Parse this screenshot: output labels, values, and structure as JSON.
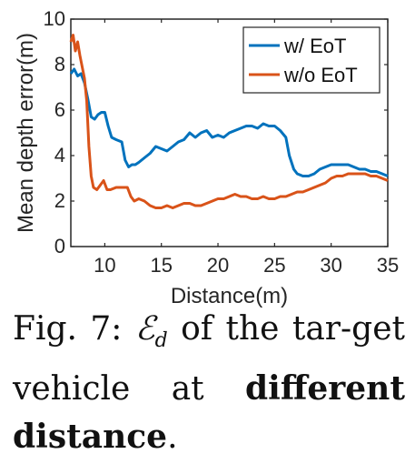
{
  "chart_data": {
    "type": "line",
    "xlabel": "Distance(m)",
    "ylabel": "Mean depth error(m)",
    "xlim": [
      7,
      35
    ],
    "ylim": [
      0,
      10
    ],
    "xticks": [
      10,
      15,
      20,
      25,
      30,
      35
    ],
    "yticks": [
      0,
      2,
      4,
      6,
      8,
      10
    ],
    "grid": false,
    "legend_position": "top-right",
    "series": [
      {
        "name": "w/ EoT",
        "color": "#0072BD",
        "points": [
          [
            7.0,
            7.6
          ],
          [
            7.3,
            7.8
          ],
          [
            7.6,
            7.5
          ],
          [
            7.9,
            7.6
          ],
          [
            8.2,
            7.2
          ],
          [
            8.5,
            6.5
          ],
          [
            8.8,
            5.7
          ],
          [
            9.1,
            5.6
          ],
          [
            9.4,
            5.8
          ],
          [
            9.7,
            5.9
          ],
          [
            10.0,
            5.9
          ],
          [
            10.3,
            5.3
          ],
          [
            10.6,
            4.8
          ],
          [
            11.0,
            4.7
          ],
          [
            11.5,
            4.6
          ],
          [
            11.8,
            3.8
          ],
          [
            12.1,
            3.5
          ],
          [
            12.4,
            3.6
          ],
          [
            12.7,
            3.6
          ],
          [
            13.0,
            3.7
          ],
          [
            13.5,
            3.9
          ],
          [
            14.0,
            4.1
          ],
          [
            14.5,
            4.4
          ],
          [
            15.0,
            4.3
          ],
          [
            15.5,
            4.2
          ],
          [
            16.0,
            4.4
          ],
          [
            16.5,
            4.6
          ],
          [
            17.0,
            4.7
          ],
          [
            17.5,
            5.0
          ],
          [
            18.0,
            4.8
          ],
          [
            18.5,
            5.0
          ],
          [
            19.0,
            5.1
          ],
          [
            19.5,
            4.8
          ],
          [
            20.0,
            4.9
          ],
          [
            20.5,
            4.8
          ],
          [
            21.0,
            5.0
          ],
          [
            21.5,
            5.1
          ],
          [
            22.0,
            5.2
          ],
          [
            22.5,
            5.3
          ],
          [
            23.0,
            5.3
          ],
          [
            23.5,
            5.2
          ],
          [
            24.0,
            5.4
          ],
          [
            24.5,
            5.3
          ],
          [
            25.0,
            5.3
          ],
          [
            25.5,
            5.1
          ],
          [
            26.0,
            4.8
          ],
          [
            26.3,
            4.0
          ],
          [
            26.7,
            3.4
          ],
          [
            27.0,
            3.2
          ],
          [
            27.5,
            3.1
          ],
          [
            28.0,
            3.1
          ],
          [
            28.5,
            3.2
          ],
          [
            29.0,
            3.4
          ],
          [
            29.5,
            3.5
          ],
          [
            30.0,
            3.6
          ],
          [
            30.5,
            3.6
          ],
          [
            31.0,
            3.6
          ],
          [
            31.5,
            3.6
          ],
          [
            32.0,
            3.5
          ],
          [
            32.5,
            3.4
          ],
          [
            33.0,
            3.4
          ],
          [
            33.5,
            3.3
          ],
          [
            34.0,
            3.3
          ],
          [
            34.5,
            3.2
          ],
          [
            35.0,
            3.1
          ]
        ]
      },
      {
        "name": "w/o EoT",
        "color": "#D95319",
        "points": [
          [
            7.0,
            9.0
          ],
          [
            7.2,
            9.3
          ],
          [
            7.4,
            8.6
          ],
          [
            7.6,
            9.0
          ],
          [
            7.8,
            8.4
          ],
          [
            8.0,
            7.9
          ],
          [
            8.2,
            7.4
          ],
          [
            8.4,
            6.4
          ],
          [
            8.6,
            4.4
          ],
          [
            8.8,
            3.1
          ],
          [
            9.0,
            2.6
          ],
          [
            9.3,
            2.5
          ],
          [
            9.6,
            2.7
          ],
          [
            9.9,
            2.9
          ],
          [
            10.2,
            2.5
          ],
          [
            10.5,
            2.5
          ],
          [
            11.0,
            2.6
          ],
          [
            11.5,
            2.6
          ],
          [
            12.0,
            2.6
          ],
          [
            12.3,
            2.2
          ],
          [
            12.6,
            2.0
          ],
          [
            13.0,
            2.1
          ],
          [
            13.5,
            2.0
          ],
          [
            14.0,
            1.8
          ],
          [
            14.5,
            1.7
          ],
          [
            15.0,
            1.7
          ],
          [
            15.5,
            1.8
          ],
          [
            16.0,
            1.7
          ],
          [
            16.5,
            1.8
          ],
          [
            17.0,
            1.9
          ],
          [
            17.5,
            1.9
          ],
          [
            18.0,
            1.8
          ],
          [
            18.5,
            1.8
          ],
          [
            19.0,
            1.9
          ],
          [
            19.5,
            2.0
          ],
          [
            20.0,
            2.1
          ],
          [
            20.5,
            2.1
          ],
          [
            21.0,
            2.2
          ],
          [
            21.5,
            2.3
          ],
          [
            22.0,
            2.2
          ],
          [
            22.5,
            2.2
          ],
          [
            23.0,
            2.1
          ],
          [
            23.5,
            2.1
          ],
          [
            24.0,
            2.2
          ],
          [
            24.5,
            2.1
          ],
          [
            25.0,
            2.1
          ],
          [
            25.5,
            2.2
          ],
          [
            26.0,
            2.2
          ],
          [
            26.5,
            2.3
          ],
          [
            27.0,
            2.4
          ],
          [
            27.5,
            2.4
          ],
          [
            28.0,
            2.5
          ],
          [
            28.5,
            2.6
          ],
          [
            29.0,
            2.7
          ],
          [
            29.5,
            2.8
          ],
          [
            30.0,
            3.0
          ],
          [
            30.5,
            3.1
          ],
          [
            31.0,
            3.1
          ],
          [
            31.5,
            3.2
          ],
          [
            32.0,
            3.2
          ],
          [
            32.5,
            3.2
          ],
          [
            33.0,
            3.2
          ],
          [
            33.5,
            3.1
          ],
          [
            34.0,
            3.1
          ],
          [
            34.5,
            3.0
          ],
          [
            35.0,
            2.9
          ]
        ]
      }
    ]
  },
  "caption": {
    "label": "Fig. 7:",
    "symbol": "ℰ",
    "symbol_sub": "d",
    "text_1": "of the tar-get vehicle at",
    "bold": "different distance",
    "text_2": "."
  }
}
